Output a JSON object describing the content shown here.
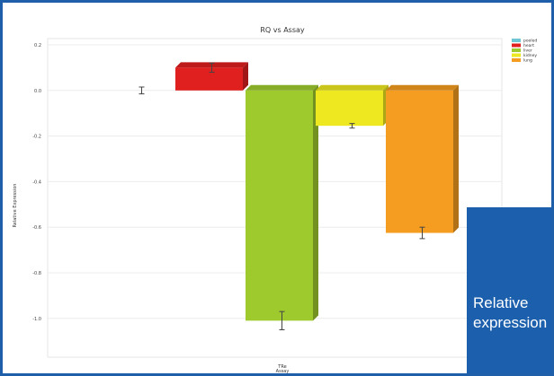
{
  "chart_data": {
    "type": "bar",
    "title": "RQ vs Assay",
    "xlabel": "TRe\nAssay",
    "ylabel": "Relative Expression",
    "categories": [
      "TRe"
    ],
    "series": [
      {
        "name": "pooled",
        "value": 0.0,
        "error": 0.015,
        "color": "#6fc7d6"
      },
      {
        "name": "heart",
        "value": 0.1,
        "error": 0.02,
        "color": "#e01f1f"
      },
      {
        "name": "liver",
        "value": -1.01,
        "error": 0.04,
        "color": "#9fca2e"
      },
      {
        "name": "kidney",
        "value": -0.155,
        "error": 0.01,
        "color": "#ede820"
      },
      {
        "name": "lung",
        "value": -0.625,
        "error": 0.025,
        "color": "#f59d20"
      }
    ],
    "ylim": [
      -1.1,
      0.2
    ],
    "yticks": [
      0.2,
      0.0,
      -0.2,
      -0.4,
      -0.6,
      -0.8,
      -1.0
    ],
    "ytick_labels": [
      "0.2",
      "0.0",
      "-0.2",
      "-0.4",
      "-0.6",
      "-0.8",
      "-1.0"
    ],
    "grid": true,
    "legend_position": "top-right",
    "error_bars": true
  },
  "callout": {
    "text": "Relative expression",
    "color": "#1b5fad"
  }
}
